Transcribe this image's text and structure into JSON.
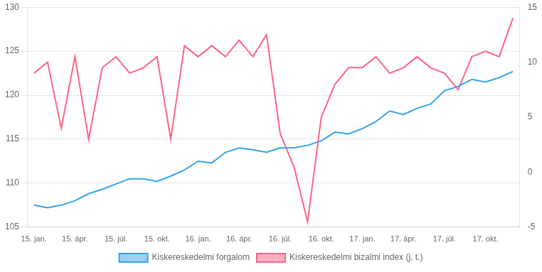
{
  "chart_data": {
    "type": "line",
    "categories": [
      "15. jan.",
      null,
      null,
      "15. ápr.",
      null,
      null,
      "15. júl.",
      null,
      null,
      "15. okt.",
      null,
      null,
      "16. jan.",
      null,
      null,
      "16. ápr.",
      null,
      null,
      "16. júl.",
      null,
      null,
      "16. okt.",
      null,
      null,
      "17. jan.",
      null,
      null,
      "17. ápr.",
      null,
      null,
      "17. júl.",
      null,
      null,
      "17. okt.",
      null,
      null
    ],
    "series": [
      {
        "name": "Kiskereskedelmi forgalom",
        "values": [
          107.5,
          107.2,
          107.5,
          108.0,
          108.8,
          109.3,
          109.9,
          110.5,
          110.5,
          110.2,
          110.8,
          111.5,
          112.5,
          112.3,
          113.5,
          114.0,
          113.8,
          113.5,
          114.0,
          114.0,
          114.3,
          114.8,
          115.8,
          115.6,
          116.2,
          117.0,
          118.2,
          117.8,
          118.5,
          119.0,
          120.5,
          121.0,
          121.8,
          121.5,
          122.0,
          122.7
        ]
      },
      {
        "name": "Kiskereskedelmi bizalmi index (j. t.)",
        "axis": "y2",
        "values": [
          9.0,
          10.0,
          4.0,
          10.5,
          3.0,
          9.5,
          10.5,
          9.0,
          9.5,
          10.5,
          3.0,
          11.5,
          10.5,
          11.5,
          10.5,
          12.0,
          10.5,
          12.5,
          3.5,
          0.5,
          -4.5,
          5.0,
          8.0,
          9.5,
          9.5,
          10.5,
          9.0,
          9.5,
          10.5,
          9.5,
          9.0,
          7.5,
          10.5,
          11.0,
          10.5,
          14.0
        ]
      }
    ],
    "ylim": [
      105,
      130
    ],
    "yticks": [
      105,
      110,
      115,
      120,
      125,
      130
    ],
    "y2lim": [
      -5,
      15
    ],
    "y2ticks": [
      -5,
      0,
      5,
      10,
      15
    ],
    "grid": true,
    "legend": "bottom"
  }
}
